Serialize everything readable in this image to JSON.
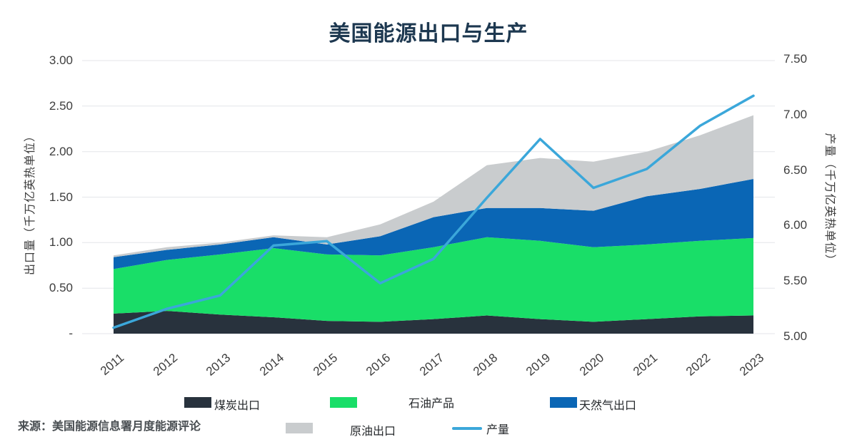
{
  "title": "美国能源出口与生产",
  "source": "来源：美国能源信息署月度能源评论",
  "colors": {
    "grid": "#e4e6e9",
    "title_text": "#1d3850",
    "axis_text": "#3d3d3d"
  },
  "chart_data": {
    "type": "area",
    "title": "美国能源出口与生产",
    "x": [
      "2011",
      "2012",
      "2013",
      "2014",
      "2015",
      "2016",
      "2017",
      "2018",
      "2019",
      "2020",
      "2021",
      "2022",
      "2023"
    ],
    "series": [
      {
        "id": "coal-exports",
        "name": "煤炭出口",
        "type": "area",
        "axis": "left",
        "color": "#28323d",
        "values": [
          0.22,
          0.25,
          0.21,
          0.18,
          0.14,
          0.13,
          0.16,
          0.2,
          0.16,
          0.13,
          0.16,
          0.19,
          0.2
        ]
      },
      {
        "id": "petroleum-products",
        "name": "石油产品",
        "type": "area",
        "axis": "left",
        "color": "#19de68",
        "values": [
          0.49,
          0.56,
          0.66,
          0.76,
          0.73,
          0.73,
          0.79,
          0.86,
          0.86,
          0.82,
          0.82,
          0.83,
          0.85
        ]
      },
      {
        "id": "natural-gas-exports",
        "name": "天然气出口",
        "type": "area",
        "axis": "left",
        "color": "#0a66b5",
        "values": [
          0.13,
          0.11,
          0.11,
          0.12,
          0.11,
          0.21,
          0.33,
          0.32,
          0.36,
          0.4,
          0.53,
          0.57,
          0.65
        ]
      },
      {
        "id": "crude-oil-exports",
        "name": "原油出口",
        "type": "area",
        "axis": "left",
        "color": "#c9ccce",
        "values": [
          0.02,
          0.03,
          0.02,
          0.02,
          0.08,
          0.13,
          0.17,
          0.47,
          0.55,
          0.54,
          0.49,
          0.59,
          0.7
        ]
      },
      {
        "id": "production",
        "name": "产量",
        "type": "line",
        "axis": "right",
        "color": "#3ba7da",
        "values": [
          5.08,
          5.25,
          5.37,
          5.82,
          5.86,
          5.48,
          5.7,
          6.25,
          6.78,
          6.34,
          6.51,
          6.9,
          7.17
        ]
      }
    ],
    "left_axis": {
      "label": "出口量（千万亿英热单位）",
      "ticks": [
        "3.00",
        "2.50",
        "2.00",
        "1.50",
        "1.00",
        "0.50",
        "-"
      ],
      "min": 0,
      "max": 3.0
    },
    "right_axis": {
      "label": "产量（千万亿英热单位）",
      "ticks": [
        "7.50",
        "7.00",
        "6.50",
        "6.00",
        "5.50",
        "5.00"
      ],
      "min": 5.0,
      "max": 7.5
    },
    "grid": true,
    "stacked": true,
    "legend_position": "bottom"
  }
}
